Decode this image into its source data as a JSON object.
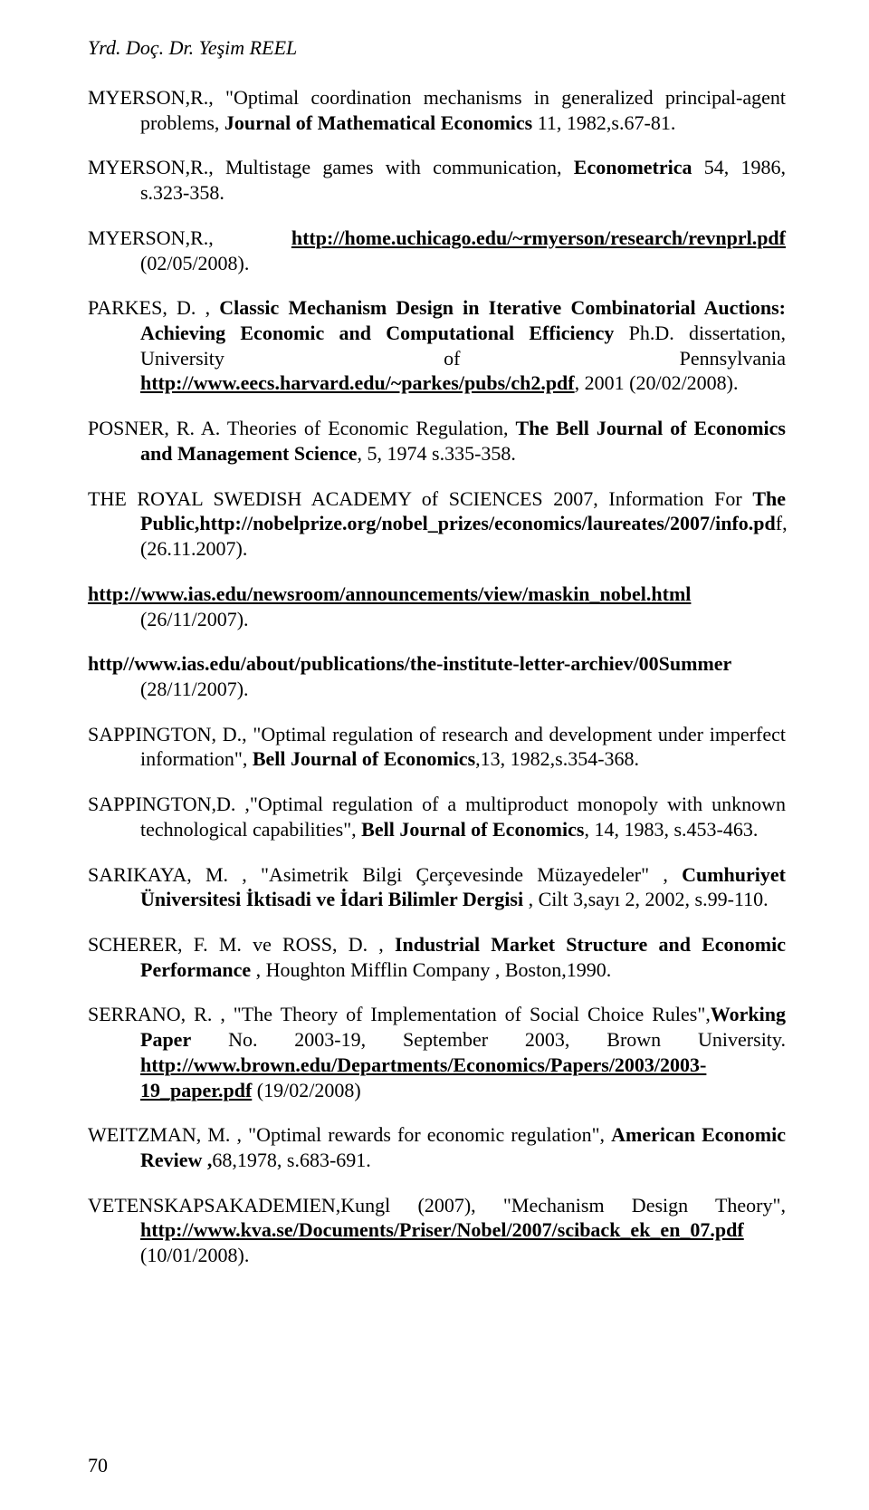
{
  "header": "Yrd. Doç. Dr. Yeşim REEL",
  "pageNumber": "70",
  "refs": [
    {
      "pre": "MYERSON,R., \"Optimal coordination mechanisms in generalized principal-agent problems, ",
      "bold1": "Journal of Mathematical Economics ",
      "mid1": "11, 1982,s.67-81.",
      "post": ""
    },
    {
      "pre": "MYERSON,R., Multistage games with communication, ",
      "bold1": "Econometrica",
      "mid1": " 54, 1986, s.323-358.",
      "post": ""
    },
    {
      "pre": "MYERSON,R., ",
      "link1": "http://home.uchicago.edu/~rmyerson/research/revnprl.pdf",
      "post": " (02/05/2008)."
    },
    {
      "pre": "PARKES, D. , ",
      "bold1": "Classic Mechanism Design in Iterative Combinatorial Auctions: Achieving Economic and Computational Efficiency",
      "mid1": " Ph.D. dissertation, University of Pennsylvania ",
      "link1": "http://www.eecs.harvard.edu/~parkes/pubs/ch2.pdf",
      "post": ", 2001 (20/02/2008)."
    },
    {
      "pre": "POSNER, R. A. Theories of Economic Regulation, ",
      "bold1": "The Bell Journal of Economics and Management Science",
      "mid1": ",  5, 1974  s.335-358.",
      "post": ""
    },
    {
      "pre": "THE  ROYAL SWEDISH ACADEMY  of SCIENCES 2007, Information For ",
      "bold1": "The Public,http://nobelprize.org/nobel_prizes/economics/laureates/2007/info.pd",
      "mid1": "f, (26.11.2007).",
      "post": ""
    },
    {
      "link1": "http://www.ias.edu/newsroom/announcements/view/maskin_nobel.html",
      "post": " (26/11/2007)."
    },
    {
      "bold1": "http//www.ias.edu/about/publications/the-institute-letter-archiev/00Summer",
      "post": " (28/11/2007)."
    },
    {
      "pre": "SAPPINGTON, D., \"Optimal regulation of research and development under imperfect information\", ",
      "bold1": "Bell Journal of Economics",
      "mid1": ",13, 1982,s.354-368.",
      "post": ""
    },
    {
      "pre": "SAPPINGTON,D. ,\"Optimal regulation of a multiproduct monopoly with unknown technological capabilities\", ",
      "bold1": "Bell Journal of Economics",
      "mid1": ", 14, 1983, s.453-463.",
      "post": ""
    },
    {
      "pre": "SARIKAYA, M. , \"Asimetrik Bilgi Çerçevesinde Müzayedeler\" , ",
      "bold1": "Cumhuriyet Üniversitesi İktisadi ve İdari Bilimler Dergisi",
      "mid1": " , Cilt 3,sayı 2, 2002, s.99-110.",
      "post": ""
    },
    {
      "pre": "SCHERER, F. M. ve ROSS, D. , ",
      "bold1": "Industrial Market Structure and Economic Performance",
      "mid1": " ,  Houghton Mifflin Company , Boston,1990.",
      "post": ""
    },
    {
      "pre": "SERRANO, R. , \"The Theory of Implementation of Social Choice Rules\",",
      "bold1": "Working Paper",
      "mid1": " No. 2003-19, September 2003, Brown University. ",
      "link1": "http://www.brown.edu/Departments/Economics/Papers/2003/2003-19_paper.pdf",
      "post": " (19/02/2008)"
    },
    {
      "pre": "WEITZMAN, M. , \"Optimal rewards for economic regulation\", ",
      "bold1": "American Economic Review ,",
      "mid1": "68,1978, s.683-691.",
      "post": ""
    },
    {
      "pre": "VETENSKAPSAKADEMIEN,Kungl (2007), \"Mechanism Design Theory\", ",
      "link1": "http://www.kva.se/Documents/Priser/Nobel/2007/sciback_ek_en_07.pdf",
      "post": " (10/01/2008)."
    }
  ]
}
